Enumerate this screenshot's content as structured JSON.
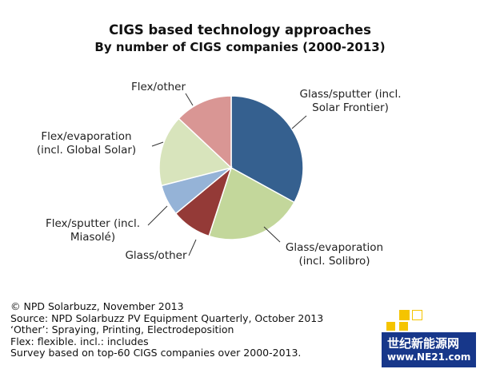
{
  "chart_data": {
    "type": "pie",
    "title": "CIGS based technology approaches",
    "subtitle": "By number of CIGS companies (2000-2013)",
    "slices": [
      {
        "label": [
          "Glass/sputter (incl.",
          "Solar Frontier)"
        ],
        "value": 33,
        "color": "#35608f"
      },
      {
        "label": [
          "Glass/evaporation",
          "(incl. Solibro)"
        ],
        "value": 22,
        "color": "#c3d79b"
      },
      {
        "label": [
          "Glass/other"
        ],
        "value": 9,
        "color": "#943a37"
      },
      {
        "label": [
          "Flex/sputter (incl.",
          "Miasolé)"
        ],
        "value": 7,
        "color": "#95b3d7"
      },
      {
        "label": [
          "Flex/evaporation",
          "(incl. Global Solar)"
        ],
        "value": 16,
        "color": "#d8e4bc"
      },
      {
        "label": [
          "Flex/other"
        ],
        "value": 13,
        "color": "#d99694"
      }
    ]
  },
  "notes": [
    "© NPD Solarbuzz, November 2013",
    "Source: NPD Solarbuzz PV Equipment Quarterly, October 2013",
    "‘Other’: Spraying, Printing,  Electrodeposition",
    "Flex: flexible. incl.: includes",
    "Survey based on top-60 CIGS companies over 2000-2013."
  ],
  "watermark": {
    "line1": "世纪新能源网",
    "line2": "www.NE21.com"
  }
}
